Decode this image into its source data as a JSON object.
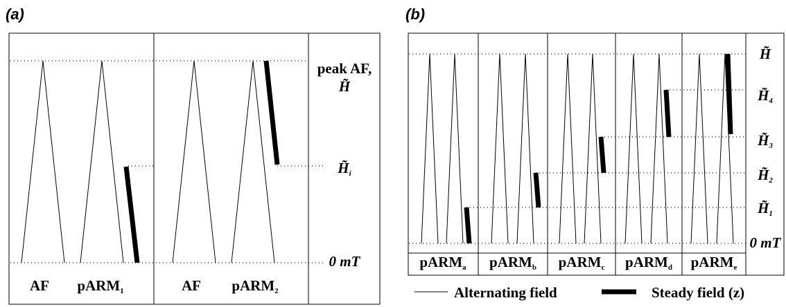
{
  "panel_a": {
    "label": "(a)",
    "peak_label": "peak AF,",
    "levels": [
      {
        "symbol": "H̃"
      },
      {
        "symbol": "H̃",
        "sub": "i"
      },
      {
        "symbol": "0 mT"
      }
    ],
    "columns": [
      {
        "text": "AF"
      },
      {
        "text": "pARM",
        "sub": "1"
      },
      {
        "text": "AF"
      },
      {
        "text": "pARM",
        "sub": "2"
      }
    ]
  },
  "panel_b": {
    "label": "(b)",
    "levels": [
      {
        "symbol": "H̃"
      },
      {
        "symbol": "H̃",
        "sub": "4"
      },
      {
        "symbol": "H̃",
        "sub": "3"
      },
      {
        "symbol": "H̃",
        "sub": "2"
      },
      {
        "symbol": "H̃",
        "sub": "1"
      },
      {
        "symbol": "0 mT"
      }
    ],
    "columns": [
      {
        "text": "pARM",
        "sub": "a"
      },
      {
        "text": "pARM",
        "sub": "b"
      },
      {
        "text": "pARM",
        "sub": "c"
      },
      {
        "text": "pARM",
        "sub": "d"
      },
      {
        "text": "pARM",
        "sub": "e"
      }
    ]
  },
  "legend": {
    "alternating": "Alternating field",
    "steady": "Steady field (z)"
  }
}
